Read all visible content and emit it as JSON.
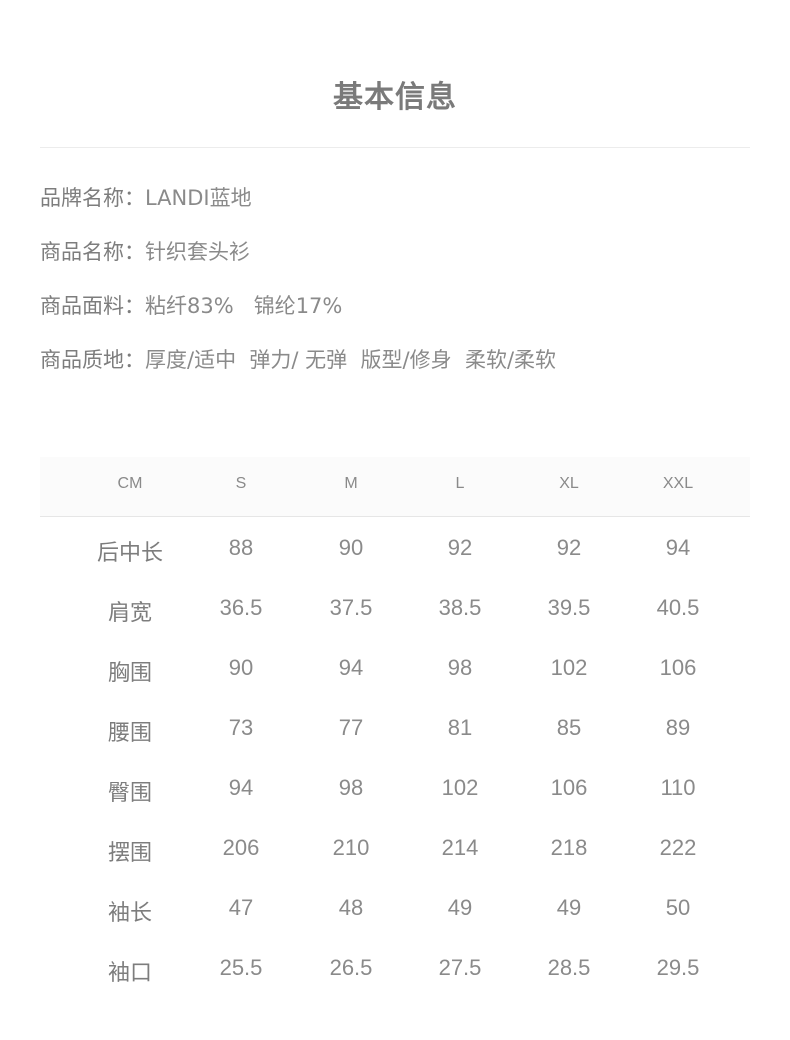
{
  "title": "基本信息",
  "info": [
    {
      "label": "品牌名称：",
      "value": "LANDI蓝地"
    },
    {
      "label": "商品名称：",
      "value": "针织套头衫"
    },
    {
      "label": "商品面料：",
      "value": "粘纤83%   锦纶17%"
    },
    {
      "label": "商品质地：",
      "value": "厚度/适中  弹力/ 无弹  版型/修身  柔软/柔软"
    }
  ],
  "size_table": {
    "headers": [
      "CM",
      "S",
      "M",
      "L",
      "XL",
      "XXL"
    ],
    "rows": [
      [
        "后中长",
        "88",
        "90",
        "92",
        "92",
        "94"
      ],
      [
        "肩宽",
        "36.5",
        "37.5",
        "38.5",
        "39.5",
        "40.5"
      ],
      [
        "胸围",
        "90",
        "94",
        "98",
        "102",
        "106"
      ],
      [
        "腰围",
        "73",
        "77",
        "81",
        "85",
        "89"
      ],
      [
        "臀围",
        "94",
        "98",
        "102",
        "106",
        "110"
      ],
      [
        "摆围",
        "206",
        "210",
        "214",
        "218",
        "222"
      ],
      [
        "袖长",
        "47",
        "48",
        "49",
        "49",
        "50"
      ],
      [
        "袖口",
        "25.5",
        "26.5",
        "27.5",
        "28.5",
        "29.5"
      ]
    ]
  }
}
